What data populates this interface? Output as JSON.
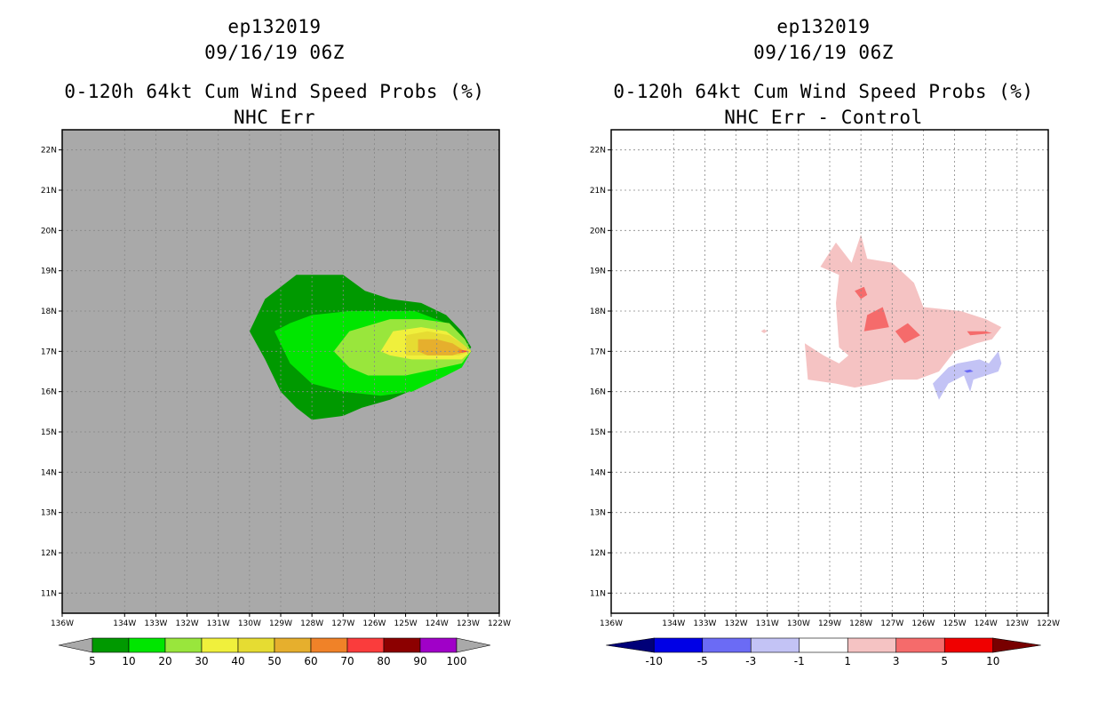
{
  "panels": [
    {
      "title_line1": "ep132019",
      "title_line2": "09/16/19 06Z",
      "title_line3": "0-120h 64kt Cum Wind Speed Probs (%)",
      "title_line4": "NHC Err",
      "background": "#a9a9a9"
    },
    {
      "title_line1": "ep132019",
      "title_line2": "09/16/19 06Z",
      "title_line3": "0-120h 64kt Cum Wind Speed Probs (%)",
      "title_line4": "NHC Err - Control",
      "background": "#ffffff"
    }
  ],
  "chart_data": [
    {
      "type": "heatmap",
      "title": "0-120h 64kt Cum Wind Speed Probs (%)",
      "subtitle": "NHC Err",
      "xlabel": "",
      "ylabel": "",
      "xlim": [
        -136,
        -122
      ],
      "ylim": [
        10.5,
        22.5
      ],
      "grid": true,
      "x_ticks": [
        -136,
        -134,
        -133,
        -132,
        -131,
        -130,
        -129,
        -128,
        -127,
        -126,
        -125,
        -124,
        -123,
        -122
      ],
      "x_tick_labels": [
        "136W",
        "134W",
        "133W",
        "132W",
        "131W",
        "130W",
        "129W",
        "128W",
        "127W",
        "126W",
        "125W",
        "124W",
        "123W",
        "122W"
      ],
      "y_ticks": [
        11,
        12,
        13,
        14,
        15,
        16,
        17,
        18,
        19,
        20,
        21,
        22
      ],
      "y_tick_labels": [
        "11N",
        "12N",
        "13N",
        "14N",
        "15N",
        "16N",
        "17N",
        "18N",
        "19N",
        "20N",
        "21N",
        "22N"
      ],
      "contours": [
        {
          "level": 5,
          "color": "#009900",
          "polygon": [
            [
              -130,
              17.5
            ],
            [
              -129.5,
              18.3
            ],
            [
              -128.5,
              18.9
            ],
            [
              -127.8,
              18.9
            ],
            [
              -127,
              18.9
            ],
            [
              -126.3,
              18.5
            ],
            [
              -125.5,
              18.3
            ],
            [
              -124.5,
              18.2
            ],
            [
              -123.7,
              17.9
            ],
            [
              -123.2,
              17.5
            ],
            [
              -122.9,
              17.1
            ],
            [
              -123.2,
              16.8
            ],
            [
              -123.7,
              16.5
            ],
            [
              -124.6,
              16.1
            ],
            [
              -125.5,
              15.8
            ],
            [
              -126.4,
              15.6
            ],
            [
              -127,
              15.4
            ],
            [
              -128,
              15.3
            ],
            [
              -128.5,
              15.6
            ],
            [
              -129,
              16
            ],
            [
              -129.5,
              16.8
            ]
          ]
        },
        {
          "level": 10,
          "color": "#00e600",
          "polygon": [
            [
              -129.2,
              17.5
            ],
            [
              -128.7,
              17.7
            ],
            [
              -128,
              17.9
            ],
            [
              -126.8,
              18
            ],
            [
              -125.5,
              18
            ],
            [
              -124.7,
              18
            ],
            [
              -123.7,
              17.7
            ],
            [
              -123.1,
              17.2
            ],
            [
              -122.9,
              17
            ],
            [
              -123.2,
              16.6
            ],
            [
              -123.7,
              16.4
            ],
            [
              -124.8,
              16
            ],
            [
              -125.8,
              15.9
            ],
            [
              -127,
              16
            ],
            [
              -128,
              16.2
            ],
            [
              -128.7,
              16.7
            ]
          ]
        },
        {
          "level": 20,
          "color": "#99e63c",
          "polygon": [
            [
              -127.3,
              17
            ],
            [
              -126.8,
              17.5
            ],
            [
              -125.5,
              17.8
            ],
            [
              -124.5,
              17.8
            ],
            [
              -123.6,
              17.7
            ],
            [
              -123.1,
              17.3
            ],
            [
              -122.9,
              17
            ],
            [
              -123.2,
              16.7
            ],
            [
              -123.8,
              16.6
            ],
            [
              -125,
              16.4
            ],
            [
              -126.2,
              16.4
            ],
            [
              -126.8,
              16.6
            ]
          ]
        },
        {
          "level": 30,
          "color": "#f0f03c",
          "polygon": [
            [
              -125.8,
              17
            ],
            [
              -125.4,
              17.5
            ],
            [
              -124.5,
              17.6
            ],
            [
              -123.7,
              17.5
            ],
            [
              -123.2,
              17.2
            ],
            [
              -122.9,
              17
            ],
            [
              -123.2,
              16.8
            ],
            [
              -123.8,
              16.8
            ],
            [
              -124.8,
              16.8
            ],
            [
              -125.5,
              16.9
            ]
          ]
        },
        {
          "level": 40,
          "color": "#e6dc32",
          "polygon": [
            [
              -125,
              17.4
            ],
            [
              -124.3,
              17.5
            ],
            [
              -123.6,
              17.4
            ],
            [
              -123.2,
              17.2
            ],
            [
              -122.9,
              17
            ],
            [
              -123.3,
              16.9
            ],
            [
              -124.2,
              16.9
            ],
            [
              -125,
              16.9
            ]
          ]
        },
        {
          "level": 50,
          "color": "#e6af2d",
          "polygon": [
            [
              -124.6,
              17.3
            ],
            [
              -124,
              17.3
            ],
            [
              -123.5,
              17.2
            ],
            [
              -123.1,
              17
            ],
            [
              -123.5,
              16.9
            ],
            [
              -124.3,
              16.9
            ],
            [
              -124.6,
              17
            ]
          ]
        },
        {
          "level": 60,
          "color": "#f08228",
          "polygon": [
            [
              -123.3,
              17.05
            ],
            [
              -123,
              17
            ],
            [
              -123.3,
              16.95
            ]
          ]
        },
        {
          "level": 70,
          "color": "#fa3c3c",
          "polygon": [
            [
              -123.2,
              17.03
            ],
            [
              -122.95,
              17
            ],
            [
              -123.2,
              16.97
            ]
          ]
        }
      ],
      "colorbar": {
        "labels": [
          "5",
          "10",
          "20",
          "30",
          "40",
          "50",
          "60",
          "70",
          "80",
          "90",
          "100"
        ],
        "colors": [
          "#009900",
          "#00e600",
          "#99e63c",
          "#f0f03c",
          "#e6dc32",
          "#e6af2d",
          "#f08228",
          "#fa3c3c",
          "#8c0000",
          "#a000c8"
        ],
        "end_colors": [
          "#a9a9a9",
          "#a9a9a9"
        ]
      }
    },
    {
      "type": "heatmap",
      "title": "0-120h 64kt Cum Wind Speed Probs (%)",
      "subtitle": "NHC Err - Control",
      "xlabel": "",
      "ylabel": "",
      "xlim": [
        -136,
        -122
      ],
      "ylim": [
        10.5,
        22.5
      ],
      "grid": true,
      "x_ticks": [
        -136,
        -134,
        -133,
        -132,
        -131,
        -130,
        -129,
        -128,
        -127,
        -126,
        -125,
        -124,
        -123,
        -122
      ],
      "x_tick_labels": [
        "136W",
        "134W",
        "133W",
        "132W",
        "131W",
        "130W",
        "129W",
        "128W",
        "127W",
        "126W",
        "125W",
        "124W",
        "123W",
        "122W"
      ],
      "y_ticks": [
        11,
        12,
        13,
        14,
        15,
        16,
        17,
        18,
        19,
        20,
        21,
        22
      ],
      "y_tick_labels": [
        "11N",
        "12N",
        "13N",
        "14N",
        "15N",
        "16N",
        "17N",
        "18N",
        "19N",
        "20N",
        "21N",
        "22N"
      ],
      "contours": [
        {
          "level": 1,
          "color": "#f5c3c3",
          "polygon": [
            [
              -128.8,
              19.7
            ],
            [
              -128.3,
              19.2
            ],
            [
              -128,
              19.9
            ],
            [
              -127.8,
              19.3
            ],
            [
              -127,
              19.2
            ],
            [
              -126.3,
              18.7
            ],
            [
              -126,
              18.1
            ],
            [
              -124.8,
              18
            ],
            [
              -124,
              17.8
            ],
            [
              -123.5,
              17.6
            ],
            [
              -123.8,
              17.3
            ],
            [
              -124.3,
              17.2
            ],
            [
              -125,
              17
            ],
            [
              -125.5,
              16.5
            ],
            [
              -126.2,
              16.3
            ],
            [
              -127,
              16.3
            ],
            [
              -127.5,
              16.2
            ],
            [
              -128.2,
              16.1
            ],
            [
              -128.8,
              16.2
            ],
            [
              -129.7,
              16.3
            ],
            [
              -129.8,
              17.2
            ],
            [
              -129.2,
              16.9
            ],
            [
              -128.7,
              16.7
            ],
            [
              -128.4,
              16.9
            ],
            [
              -128.7,
              17.1
            ],
            [
              -128.8,
              18.2
            ],
            [
              -128.7,
              18.9
            ],
            [
              -129.3,
              19.1
            ]
          ]
        },
        {
          "level": 1,
          "color": "#f5c3c3",
          "polygon": [
            [
              -131.2,
              17.5
            ],
            [
              -131.1,
              17.55
            ],
            [
              -131,
              17.5
            ],
            [
              -131.1,
              17.45
            ]
          ]
        },
        {
          "level": 1,
          "color": "#f5c3c3",
          "polygon": [
            [
              -126.2,
              17.1
            ],
            [
              -126,
              17.2
            ],
            [
              -126.1,
              17
            ]
          ]
        },
        {
          "level": 3,
          "color": "#f56b6b",
          "polygon": [
            [
              -128.2,
              18.5
            ],
            [
              -127.9,
              18.6
            ],
            [
              -127.8,
              18.4
            ],
            [
              -128,
              18.3
            ]
          ]
        },
        {
          "level": 3,
          "color": "#f56b6b",
          "polygon": [
            [
              -127.8,
              17.9
            ],
            [
              -127.3,
              18.1
            ],
            [
              -127.1,
              17.6
            ],
            [
              -127.9,
              17.5
            ]
          ]
        },
        {
          "level": 3,
          "color": "#f56b6b",
          "polygon": [
            [
              -126.9,
              17.5
            ],
            [
              -126.5,
              17.7
            ],
            [
              -126.1,
              17.4
            ],
            [
              -126.6,
              17.2
            ]
          ]
        },
        {
          "level": 3,
          "color": "#f56b6b",
          "polygon": [
            [
              -124.6,
              17.5
            ],
            [
              -124,
              17.5
            ],
            [
              -123.8,
              17.45
            ],
            [
              -124.5,
              17.4
            ]
          ]
        },
        {
          "level": -1,
          "color": "#c3c3f5",
          "polygon": [
            [
              -124.2,
              16.8
            ],
            [
              -123.9,
              16.7
            ],
            [
              -123.6,
              17
            ],
            [
              -123.5,
              16.7
            ],
            [
              -123.6,
              16.5
            ],
            [
              -124.4,
              16.3
            ],
            [
              -124.5,
              16
            ],
            [
              -124.7,
              16.4
            ],
            [
              -125.2,
              16.2
            ],
            [
              -125.5,
              15.8
            ],
            [
              -125.7,
              16.2
            ],
            [
              -125.2,
              16.6
            ],
            [
              -124.9,
              16.7
            ]
          ]
        },
        {
          "level": -3,
          "color": "#6b6bf5",
          "polygon": [
            [
              -124.7,
              16.52
            ],
            [
              -124.5,
              16.55
            ],
            [
              -124.4,
              16.5
            ],
            [
              -124.6,
              16.47
            ]
          ]
        }
      ],
      "colorbar": {
        "labels": [
          "-10",
          "-5",
          "-3",
          "-1",
          "1",
          "3",
          "5",
          "10"
        ],
        "colors": [
          "#0000e6",
          "#6b6bf5",
          "#c3c3f5",
          "#ffffff",
          "#f5c3c3",
          "#f56b6b",
          "#f00000"
        ],
        "end_colors": [
          "#000078",
          "#780000"
        ]
      }
    }
  ]
}
